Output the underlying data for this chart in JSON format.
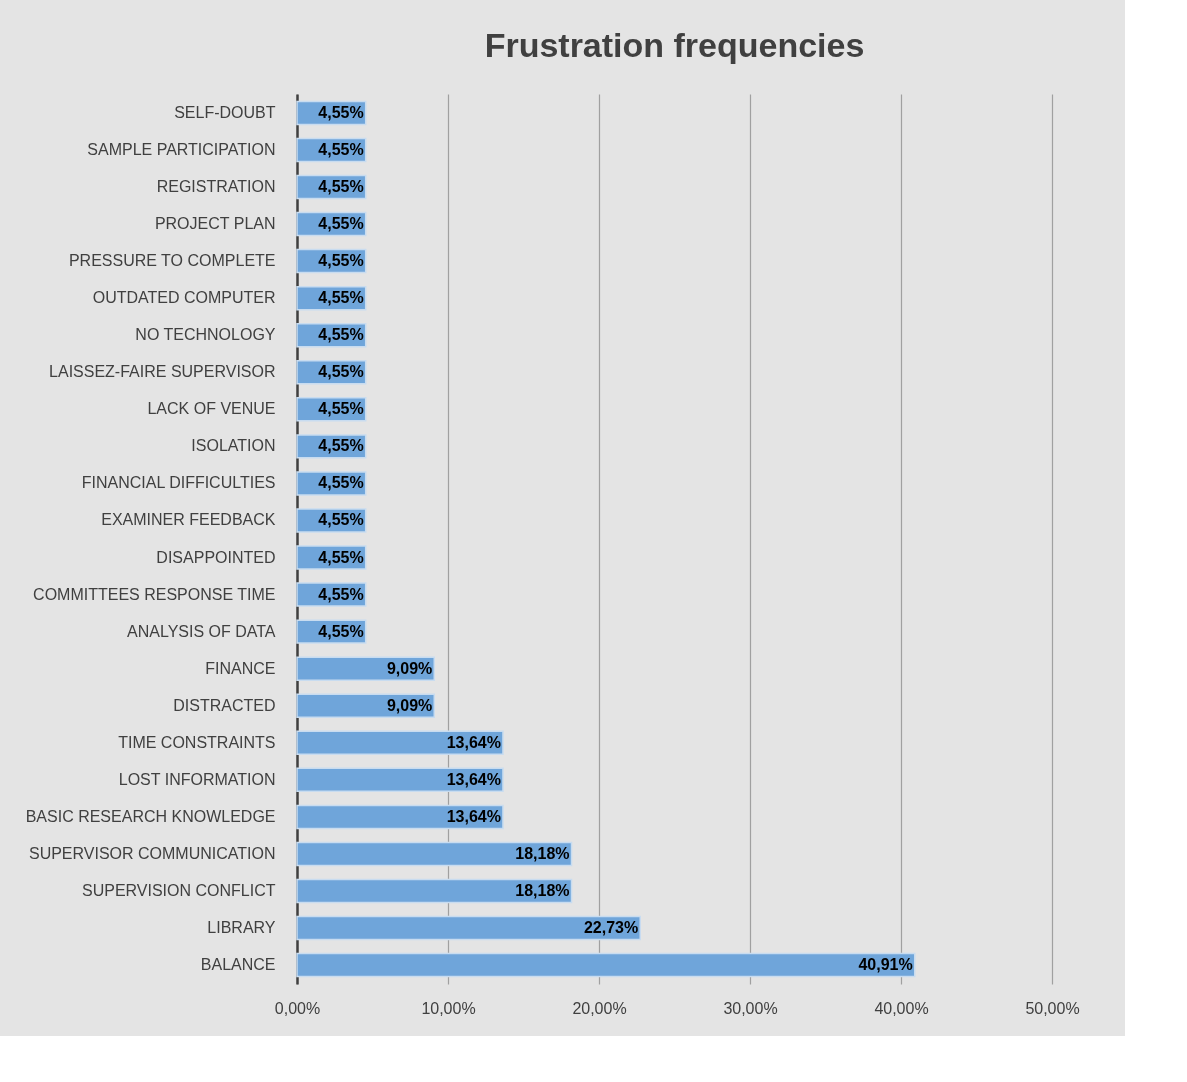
{
  "chart_data": {
    "type": "bar",
    "orientation": "horizontal",
    "title": "Frustration frequencies",
    "categories": [
      "SELF-DOUBT",
      "SAMPLE PARTICIPATION",
      "REGISTRATION",
      "PROJECT PLAN",
      "PRESSURE TO COMPLETE",
      "OUTDATED COMPUTER",
      "NO TECHNOLOGY",
      "LAISSEZ-FAIRE SUPERVISOR",
      "LACK OF VENUE",
      "ISOLATION",
      "FINANCIAL DIFFICULTIES",
      "EXAMINER FEEDBACK",
      "DISAPPOINTED",
      "COMMITTEES RESPONSE TIME",
      "ANALYSIS OF DATA",
      "FINANCE",
      "DISTRACTED",
      "TIME CONSTRAINTS",
      "LOST INFORMATION",
      "BASIC RESEARCH KNOWLEDGE",
      "SUPERVISOR COMMUNICATION",
      "SUPERVISION CONFLICT",
      "LIBRARY",
      "BALANCE"
    ],
    "values": [
      4.55,
      4.55,
      4.55,
      4.55,
      4.55,
      4.55,
      4.55,
      4.55,
      4.55,
      4.55,
      4.55,
      4.55,
      4.55,
      4.55,
      4.55,
      9.09,
      9.09,
      13.64,
      13.64,
      13.64,
      18.18,
      18.18,
      22.73,
      40.91
    ],
    "value_labels": [
      "4,55%",
      "4,55%",
      "4,55%",
      "4,55%",
      "4,55%",
      "4,55%",
      "4,55%",
      "4,55%",
      "4,55%",
      "4,55%",
      "4,55%",
      "4,55%",
      "4,55%",
      "4,55%",
      "4,55%",
      "9,09%",
      "9,09%",
      "13,64%",
      "13,64%",
      "13,64%",
      "18,18%",
      "18,18%",
      "22,73%",
      "40,91%"
    ],
    "color": "#6fa5da",
    "xlim": [
      0,
      50
    ],
    "xticks": [
      {
        "value": 0,
        "label": "0,00%"
      },
      {
        "value": 10,
        "label": "10,00%"
      },
      {
        "value": 20,
        "label": "20,00%"
      },
      {
        "value": 30,
        "label": "30,00%"
      },
      {
        "value": 40,
        "label": "40,00%"
      },
      {
        "value": 50,
        "label": "50,00%"
      }
    ],
    "grid": "x"
  }
}
